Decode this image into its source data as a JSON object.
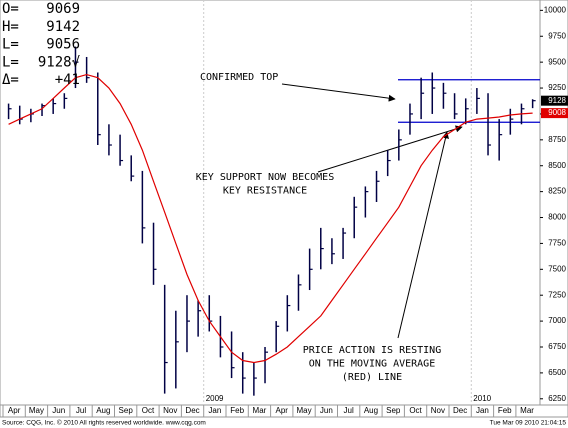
{
  "chart_data": {
    "type": "ohlc",
    "quote": [
      {
        "label": "O=",
        "value": 9069
      },
      {
        "label": "H=",
        "value": 9142
      },
      {
        "label": "L=",
        "value": 9056
      },
      {
        "label": "L=",
        "value": {
          "value": 9128,
          "label": "9128√"
        }
      },
      {
        "label": "Δ=",
        "value": {
          "value": 41,
          "label": "+41"
        }
      }
    ],
    "categories": [
      "Apr",
      "May",
      "Jun",
      "Jul",
      "Aug",
      "Sep",
      "Oct",
      "Nov",
      "Dec",
      "Jan",
      "Feb",
      "Mar",
      "Apr",
      "May",
      "Jun",
      "Jul",
      "Aug",
      "Sep",
      "Oct",
      "Nov",
      "Dec",
      "Jan",
      "Feb",
      "Mar"
    ],
    "year_labels": [
      {
        "label": "2009",
        "category": 9
      },
      {
        "label": "2010",
        "category": 21
      }
    ],
    "high": [
      9100,
      9080,
      9050,
      9100,
      9150,
      9200,
      9650,
      9550,
      9400,
      8900,
      8800,
      8600,
      8450,
      7950,
      7350,
      7100,
      7250,
      7200,
      7250,
      7050,
      6900,
      6700,
      6600,
      6750,
      7000,
      7250,
      7450,
      7700,
      7900,
      7800,
      7900,
      8200,
      8300,
      8450,
      8650,
      8850,
      9100,
      9350,
      9400,
      9300,
      9200,
      9150,
      9250,
      9200,
      8950,
      9050,
      9100,
      9142
    ],
    "low": [
      8950,
      8900,
      8920,
      8980,
      9000,
      9050,
      9250,
      9300,
      8700,
      8600,
      8500,
      8350,
      7750,
      7350,
      6300,
      6350,
      6700,
      6850,
      6900,
      6650,
      6450,
      6300,
      6280,
      6400,
      6700,
      6900,
      7100,
      7300,
      7500,
      7550,
      7600,
      7800,
      8000,
      8150,
      8400,
      8550,
      8800,
      8950,
      9000,
      9050,
      8950,
      8900,
      9000,
      8600,
      8550,
      8800,
      8900,
      9056
    ],
    "close": [
      9050,
      8950,
      9000,
      9080,
      9100,
      9150,
      9500,
      9350,
      8800,
      8700,
      8550,
      8400,
      7900,
      7500,
      6600,
      6800,
      7000,
      7100,
      7000,
      6750,
      6550,
      6450,
      6450,
      6700,
      6950,
      7150,
      7350,
      7500,
      7700,
      7650,
      7850,
      8100,
      8250,
      8350,
      8550,
      8750,
      9000,
      9200,
      9250,
      9200,
      9000,
      9050,
      9150,
      8700,
      8800,
      8950,
      9050,
      9128
    ],
    "bar_color": "#000044",
    "moving_average": {
      "color": "#e00000",
      "values": [
        8900,
        8950,
        9000,
        9050,
        9150,
        9250,
        9350,
        9380,
        9350,
        9250,
        9100,
        8900,
        8650,
        8350,
        8050,
        7750,
        7450,
        7200,
        7000,
        6850,
        6700,
        6620,
        6600,
        6620,
        6680,
        6750,
        6850,
        6950,
        7050,
        7200,
        7350,
        7500,
        7650,
        7800,
        7950,
        8100,
        8300,
        8500,
        8650,
        8780,
        8850,
        8920,
        8950,
        8960,
        8970,
        8990,
        9000,
        9008
      ]
    },
    "levels": [
      {
        "value": 9330,
        "color": "#0000cc"
      },
      {
        "value": 8920,
        "color": "#0000cc"
      }
    ],
    "last_prices": [
      {
        "value": 9128,
        "color": "#000000"
      },
      {
        "value": 9008,
        "color": "#e00000"
      }
    ],
    "ylim": [
      6190,
      10100
    ],
    "yticks": [
      6250,
      6500,
      6750,
      7000,
      7250,
      7500,
      7750,
      8000,
      8250,
      8500,
      8750,
      9000,
      9250,
      9500,
      9750,
      10000
    ],
    "annotations": [
      {
        "lines": [
          "CONFIRMED TOP"
        ]
      },
      {
        "lines": [
          "KEY SUPPORT NOW BECOMES",
          "KEY RESISTANCE"
        ]
      },
      {
        "lines": [
          "PRICE ACTION IS RESTING",
          "ON THE MOVING AVERAGE",
          "(RED) LINE"
        ]
      }
    ],
    "source": "Source: CQG, Inc. © 2010 All rights reserved worldwide. www.cqg.com",
    "timestamp": "Tue Mar 09 2010 21:04:15"
  }
}
